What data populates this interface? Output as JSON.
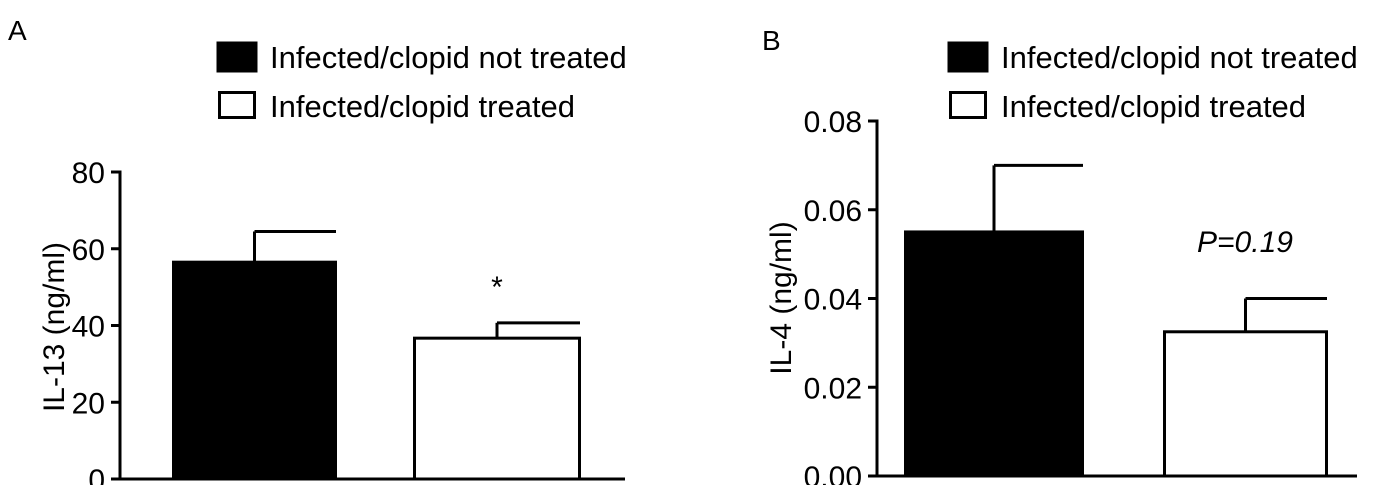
{
  "chart_data": [
    {
      "panel": "A",
      "type": "bar",
      "ylabel": "IL-13 (ng/ml)",
      "ylim": [
        0,
        80
      ],
      "yticks": [
        0,
        20,
        40,
        60,
        80
      ],
      "ytick_labels": [
        "0",
        "20",
        "40",
        "60",
        "80"
      ],
      "legend": [
        {
          "label": "Infected/clopid not treated",
          "fill": "#000000"
        },
        {
          "label": "Infected/clopid treated",
          "fill": "#ffffff"
        }
      ],
      "legend_position": "top",
      "series": [
        {
          "name": "Infected/clopid not treated",
          "value": 56.5,
          "error": 8,
          "fill": "#000000"
        },
        {
          "name": "Infected/clopid treated",
          "value": 36.7,
          "error": 4,
          "fill": "#ffffff"
        }
      ],
      "annotation": "*",
      "grid": false
    },
    {
      "panel": "B",
      "type": "bar",
      "ylabel": "IL-4 (ng/ml)",
      "ylim": [
        0,
        0.08
      ],
      "yticks": [
        0,
        0.02,
        0.04,
        0.06,
        0.08
      ],
      "ytick_labels": [
        "0.00",
        "0.02",
        "0.04",
        "0.06",
        "0.08"
      ],
      "legend": [
        {
          "label": "Infected/clopid not treated",
          "fill": "#000000"
        },
        {
          "label": "Infected/clopid treated",
          "fill": "#ffffff"
        }
      ],
      "legend_position": "top",
      "series": [
        {
          "name": "Infected/clopid not treated",
          "value": 0.055,
          "error": 0.015,
          "fill": "#000000"
        },
        {
          "name": "Infected/clopid treated",
          "value": 0.0325,
          "error": 0.0075,
          "fill": "#ffffff"
        }
      ],
      "annotation": "P=0.19",
      "grid": false
    }
  ]
}
